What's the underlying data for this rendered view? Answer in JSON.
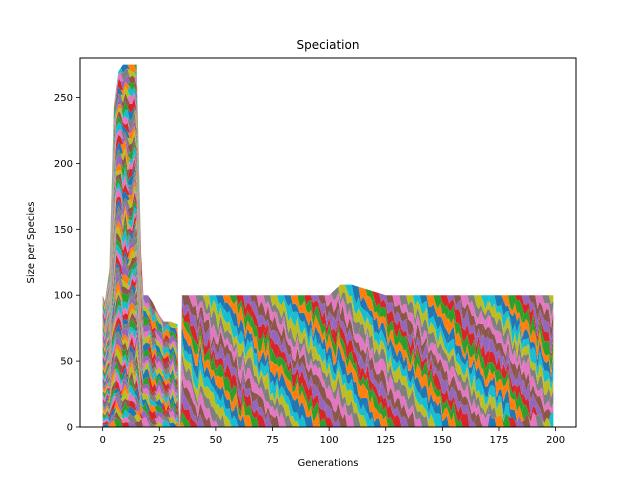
{
  "chart_data": {
    "type": "area",
    "stacked": true,
    "title": "Speciation",
    "xlabel": "Generations",
    "ylabel": "Size per Species",
    "xlim": [
      -10,
      209
    ],
    "ylim": [
      0,
      280
    ],
    "xticks": [
      0,
      25,
      50,
      75,
      100,
      125,
      150,
      175,
      200
    ],
    "yticks": [
      0,
      50,
      100,
      150,
      200,
      250
    ],
    "grid": false,
    "legend": "none",
    "palette": [
      "#1f77b4",
      "#ff7f0e",
      "#2ca02c",
      "#d62728",
      "#9467bd",
      "#8c564b",
      "#e377c2",
      "#7f7f7f",
      "#bcbd22",
      "#17becf"
    ],
    "series_count_estimate": 200,
    "total_size_profile": {
      "x": [
        0,
        1,
        3,
        5,
        7,
        9,
        11,
        13,
        15,
        16,
        17,
        18,
        20,
        22,
        25,
        27,
        28,
        30,
        33,
        34,
        35,
        37,
        40,
        45,
        50,
        60,
        75,
        90,
        100,
        105,
        110,
        125,
        150,
        175,
        190,
        199
      ],
      "total": [
        100,
        95,
        120,
        245,
        270,
        275,
        275,
        275,
        275,
        200,
        130,
        100,
        100,
        95,
        85,
        80,
        80,
        80,
        78,
        0,
        100,
        100,
        100,
        100,
        100,
        100,
        100,
        100,
        100,
        108,
        108,
        100,
        100,
        100,
        100,
        100
      ]
    }
  }
}
